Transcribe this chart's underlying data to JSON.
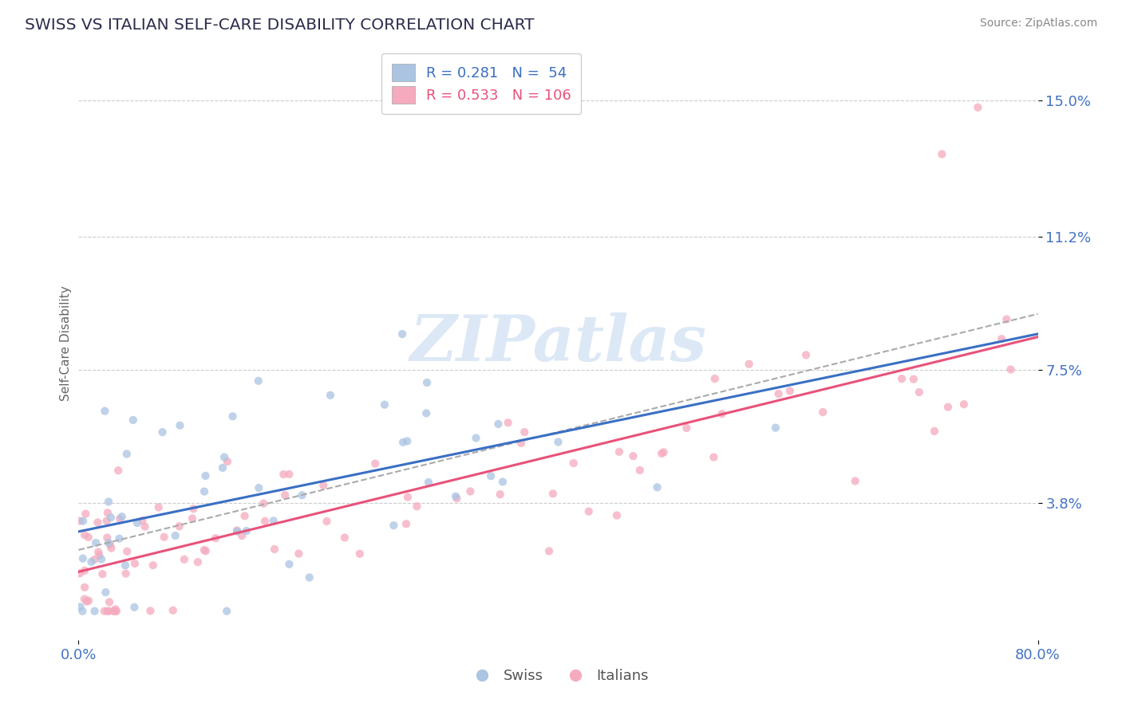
{
  "title": "SWISS VS ITALIAN SELF-CARE DISABILITY CORRELATION CHART",
  "source": "Source: ZipAtlas.com",
  "ylabel": "Self-Care Disability",
  "xlabel": "",
  "xlim": [
    0.0,
    0.8
  ],
  "ylim": [
    0.0,
    0.165
  ],
  "yticks": [
    0.038,
    0.075,
    0.112,
    0.15
  ],
  "ytick_labels": [
    "3.8%",
    "7.5%",
    "11.2%",
    "15.0%"
  ],
  "xticks": [
    0.0,
    0.8
  ],
  "xtick_labels": [
    "0.0%",
    "80.0%"
  ],
  "swiss_R": 0.281,
  "swiss_N": 54,
  "italian_R": 0.533,
  "italian_N": 106,
  "swiss_color": "#aac4e2",
  "italian_color": "#f5aabe",
  "swiss_line_color": "#3a6fc4",
  "italian_line_color": "#e8527a",
  "trend_line_color": "#aaaaaa",
  "background_color": "#ffffff",
  "title_color": "#2d2d4e",
  "axis_label_color": "#4472c4",
  "watermark_color": "#dce8f5",
  "watermark": "ZIPatlas",
  "legend_swiss_label": "R = 0.281   N =  54",
  "legend_italian_label": "R = 0.533   N = 106"
}
